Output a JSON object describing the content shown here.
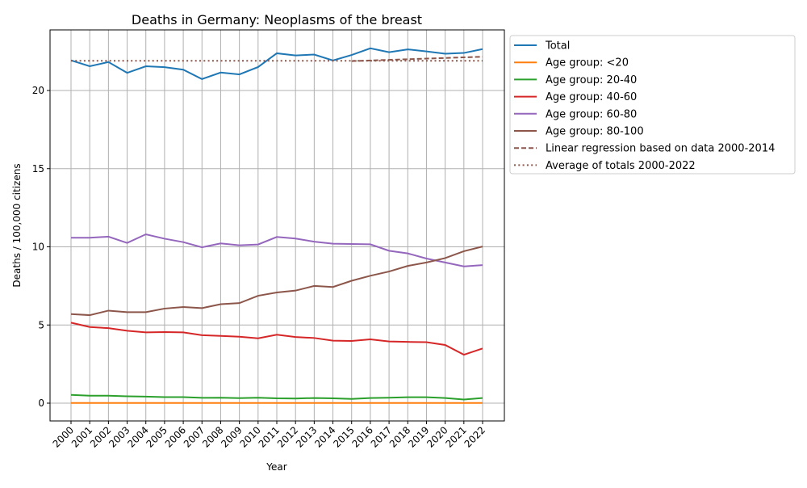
{
  "chart_data": {
    "type": "line",
    "title": "Deaths in Germany: Neoplasms of the breast",
    "xlabel": "Year",
    "ylabel": "Deaths / 100,000 citizens",
    "ylim": [
      -1.15,
      23.85
    ],
    "yticks": [
      0,
      5,
      10,
      15,
      20
    ],
    "grid": true,
    "legend_position": "outside-right",
    "x": [
      2000,
      2001,
      2002,
      2003,
      2004,
      2005,
      2006,
      2007,
      2008,
      2009,
      2010,
      2011,
      2012,
      2013,
      2014,
      2015,
      2016,
      2017,
      2018,
      2019,
      2020,
      2021,
      2022
    ],
    "series": [
      {
        "name": "Total",
        "color": "#1f77b4",
        "style": "solid",
        "values": [
          21.93,
          21.55,
          21.82,
          21.13,
          21.55,
          21.49,
          21.33,
          20.73,
          21.15,
          21.03,
          21.5,
          22.38,
          22.24,
          22.3,
          21.92,
          22.27,
          22.7,
          22.45,
          22.63,
          22.5,
          22.35,
          22.4,
          22.65
        ]
      },
      {
        "name": "Age group: <20",
        "color": "#ff7f0e",
        "style": "solid",
        "values": [
          0.01,
          0.01,
          0.01,
          0.01,
          0.01,
          0.01,
          0.01,
          0.01,
          0.01,
          0.01,
          0.01,
          0.01,
          0.01,
          0.01,
          0.01,
          0.01,
          0.01,
          0.01,
          0.01,
          0.01,
          0.01,
          0.01,
          0.01
        ]
      },
      {
        "name": "Age group: 20-40",
        "color": "#2ca02c",
        "style": "solid",
        "values": [
          0.53,
          0.48,
          0.48,
          0.44,
          0.42,
          0.39,
          0.39,
          0.34,
          0.35,
          0.32,
          0.35,
          0.31,
          0.3,
          0.33,
          0.31,
          0.27,
          0.33,
          0.35,
          0.38,
          0.38,
          0.33,
          0.23,
          0.33
        ]
      },
      {
        "name": "Age group: 40-60",
        "color": "#d62728",
        "style": "solid",
        "values": [
          5.15,
          4.87,
          4.8,
          4.63,
          4.53,
          4.55,
          4.53,
          4.35,
          4.3,
          4.25,
          4.15,
          4.38,
          4.23,
          4.17,
          4.0,
          3.98,
          4.08,
          3.95,
          3.92,
          3.9,
          3.72,
          3.1,
          3.5
        ]
      },
      {
        "name": "Age group: 60-80",
        "color": "#9467bd",
        "style": "solid",
        "values": [
          10.58,
          10.58,
          10.65,
          10.25,
          10.8,
          10.52,
          10.3,
          9.97,
          10.22,
          10.1,
          10.15,
          10.63,
          10.53,
          10.33,
          10.2,
          10.18,
          10.16,
          9.75,
          9.58,
          9.25,
          9.0,
          8.75,
          8.83
        ]
      },
      {
        "name": "Age group: 80-100",
        "color": "#8c564b",
        "style": "solid",
        "values": [
          5.7,
          5.63,
          5.92,
          5.82,
          5.82,
          6.05,
          6.15,
          6.08,
          6.33,
          6.4,
          6.87,
          7.08,
          7.2,
          7.5,
          7.43,
          7.83,
          8.15,
          8.42,
          8.78,
          9.0,
          9.28,
          9.72,
          10.02
        ]
      },
      {
        "name": "Linear regression based on data 2000-2014",
        "color": "#8c564b",
        "style": "dashed",
        "x": [
          2015,
          2022
        ],
        "values": [
          21.88,
          22.16
        ]
      },
      {
        "name": "Average of totals 2000-2022",
        "color": "#8c564b",
        "style": "dotted",
        "x": [
          2000,
          2022
        ],
        "values": [
          21.9,
          21.9
        ]
      }
    ]
  }
}
